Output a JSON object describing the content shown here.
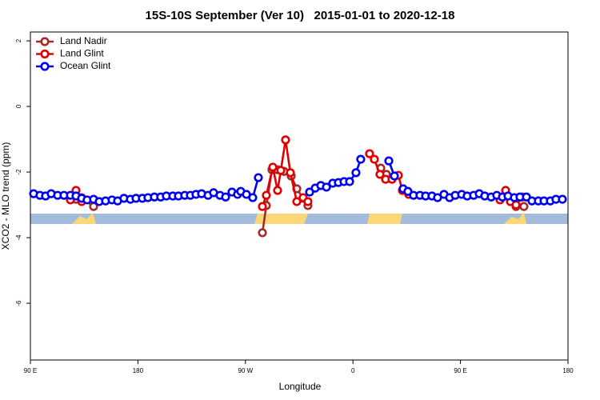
{
  "chart_data": {
    "type": "line",
    "title": "15S-10S September (Ver 10)   2015-01-01 to 2020-12-18",
    "x_label": "Longitude",
    "y_label": "XCO2 - MLO trend (ppm)",
    "xlim": [
      90,
      540
    ],
    "xticks": [
      {
        "value": 90,
        "label": "90 E"
      },
      180,
      {
        "value": 270,
        "label": "90 W"
      },
      {
        "value": 360,
        "label": "0"
      },
      {
        "value": 450,
        "label": "90 E"
      },
      {
        "value": 540,
        "label": "180"
      }
    ],
    "ylim": [
      -7.73,
      2.27
    ],
    "yticks": [
      2,
      0,
      -2,
      -4,
      -6
    ],
    "legend": "top-left",
    "series": [
      {
        "name": "Land Nadir",
        "color": "#a52a2a",
        "x": [
          128.2,
          132.9,
          142.9,
          null,
          284.2,
          287.5,
          292.2,
          296.9,
          302.3,
          308.3,
          313.0,
          318.3,
          322.3,
          null,
          383.3,
          388.0,
          null,
          496.5,
          503.1
        ],
        "values": [
          -2.83,
          -2.78,
          -3.05,
          null,
          -3.85,
          -3.02,
          -1.93,
          -1.93,
          -1.98,
          -2.12,
          -2.51,
          -2.8,
          -3.02,
          null,
          -1.88,
          -2.07,
          null,
          -3.05,
          -3.05
        ]
      },
      {
        "name": "Land Glint",
        "color": "#e00000",
        "x": [
          123.5,
          128.2,
          132.9,
          null,
          284.2,
          287.5,
          292.9,
          296.9,
          299.6,
          303.6,
          307.6,
          313.0,
          318.3,
          322.3,
          null,
          373.9,
          377.9,
          382.6,
          387.3,
          392.7,
          398.0,
          401.4,
          406.7,
          null,
          483.1,
          487.8,
          491.8,
          496.5,
          501.8
        ],
        "values": [
          -2.85,
          -2.56,
          -2.9,
          null,
          -3.05,
          -2.71,
          -1.85,
          -2.56,
          -1.95,
          -1.02,
          -2.02,
          -2.9,
          -2.78,
          -2.9,
          null,
          -1.44,
          -1.61,
          -2.07,
          -2.22,
          -2.22,
          -2.1,
          -2.56,
          -2.68,
          null,
          -2.85,
          -2.56,
          -2.9,
          -3.0,
          -2.76
        ]
      },
      {
        "name": "Ocean Glint",
        "color": "#0000ee",
        "x": [
          92.7,
          98.0,
          102.7,
          107.4,
          112.8,
          118.1,
          123.5,
          128.2,
          132.9,
          137.5,
          142.9,
          147.6,
          152.9,
          158.3,
          163.0,
          168.3,
          173.7,
          178.4,
          183.7,
          188.4,
          193.8,
          199.1,
          203.8,
          209.2,
          213.9,
          219.2,
          223.9,
          228.6,
          233.3,
          238.7,
          243.3,
          248.7,
          253.4,
          258.7,
          263.4,
          266.1,
          270.8,
          276.1,
          280.8,
          null,
          323.7,
          328.4,
          333.1,
          337.8,
          343.1,
          347.8,
          352.5,
          357.2,
          362.5,
          366.5,
          null,
          390.0,
          394.7,
          null,
          402.0,
          406.0,
          410.7,
          416.1,
          420.8,
          426.1,
          430.8,
          436.2,
          440.9,
          445.6,
          451.0,
          455.6,
          461.0,
          465.7,
          470.3,
          475.7,
          480.4,
          485.1,
          489.8,
          495.1,
          499.8,
          505.2,
          509.8,
          515.2,
          519.9,
          525.2,
          529.9,
          535.3
        ],
        "values": [
          -2.66,
          -2.71,
          -2.73,
          -2.66,
          -2.71,
          -2.71,
          -2.71,
          -2.73,
          -2.8,
          -2.85,
          -2.83,
          -2.9,
          -2.88,
          -2.85,
          -2.88,
          -2.8,
          -2.83,
          -2.8,
          -2.8,
          -2.78,
          -2.76,
          -2.76,
          -2.73,
          -2.73,
          -2.73,
          -2.71,
          -2.71,
          -2.68,
          -2.66,
          -2.71,
          -2.63,
          -2.71,
          -2.76,
          -2.61,
          -2.68,
          -2.59,
          -2.68,
          -2.78,
          -2.17,
          null,
          -2.61,
          -2.49,
          -2.41,
          -2.46,
          -2.34,
          -2.32,
          -2.29,
          -2.29,
          -2.02,
          -1.61,
          null,
          -1.66,
          -2.12,
          null,
          -2.51,
          -2.59,
          -2.71,
          -2.71,
          -2.73,
          -2.73,
          -2.78,
          -2.68,
          -2.78,
          -2.71,
          -2.68,
          -2.73,
          -2.71,
          -2.66,
          -2.73,
          -2.76,
          -2.71,
          -2.76,
          -2.73,
          -2.78,
          -2.76,
          -2.76,
          -2.88,
          -2.88,
          -2.88,
          -2.88,
          -2.83,
          -2.83
        ]
      }
    ]
  }
}
